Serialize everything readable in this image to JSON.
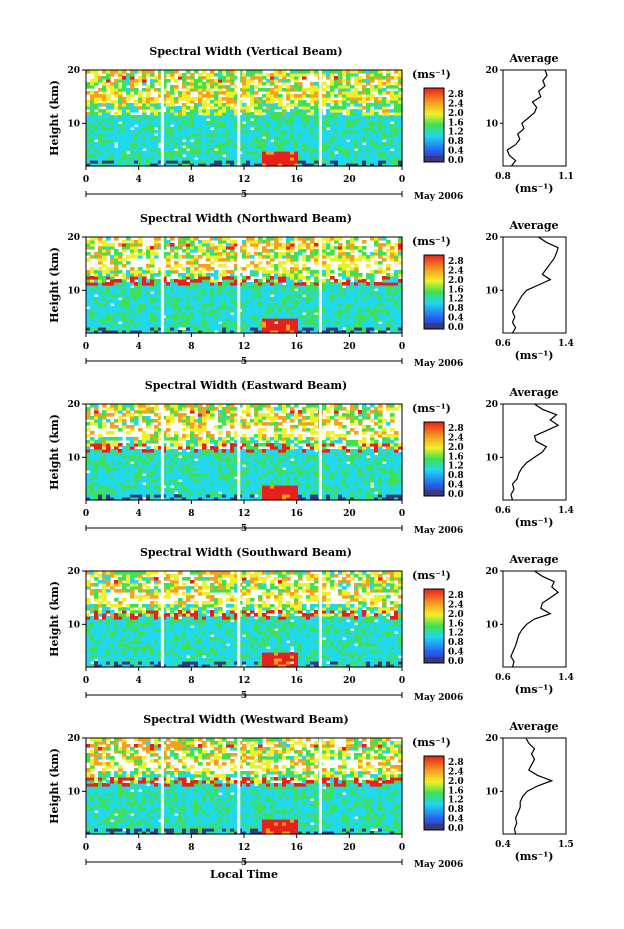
{
  "figure": {
    "xlabel": "Local Time",
    "ylabel": "Height (km)",
    "date_label": "May 2006",
    "day_label": "5",
    "unit_label": "(ms⁻¹)",
    "average_title": "Average",
    "colorbar_ticks": [
      "2.8",
      "2.4",
      "2.0",
      "1.6",
      "1.2",
      "0.8",
      "0.4",
      "0.0"
    ],
    "colors": {
      "red": "#e8201c",
      "orange": "#f4a020",
      "yellow": "#f0f028",
      "green": "#40e050",
      "cyan": "#20d8f0",
      "blue": "#2860f0",
      "navy": "#383a7c"
    }
  },
  "chart_data": [
    {
      "type": "heatmap",
      "title": "Spectral Width (Vertical Beam)",
      "xlim": [
        0,
        24
      ],
      "ylim": [
        2,
        20
      ],
      "xticks": [
        "0",
        "4",
        "8",
        "12",
        "16",
        "20",
        "0"
      ],
      "yticks": [
        "20",
        "10"
      ],
      "clim": [
        0.0,
        3.0
      ],
      "gaps_hours": [
        5.8,
        11.6,
        17.8
      ],
      "average": {
        "type": "line",
        "title": "Average",
        "xlim": [
          0.8,
          1.1
        ],
        "xticks": [
          "0.8",
          "1.1"
        ],
        "yticks": [
          "20",
          "10"
        ],
        "profile": [
          [
            2,
            0.84
          ],
          [
            3,
            0.86
          ],
          [
            4,
            0.83
          ],
          [
            5,
            0.82
          ],
          [
            6,
            0.86
          ],
          [
            7,
            0.88
          ],
          [
            8,
            0.87
          ],
          [
            9,
            0.9
          ],
          [
            10,
            0.89
          ],
          [
            11,
            0.92
          ],
          [
            12,
            0.95
          ],
          [
            13,
            0.96
          ],
          [
            14,
            0.94
          ],
          [
            15,
            0.98
          ],
          [
            16,
            0.97
          ],
          [
            17,
            1.0
          ],
          [
            18,
            0.99
          ],
          [
            19,
            1.01
          ],
          [
            20,
            1.0
          ]
        ]
      }
    },
    {
      "type": "heatmap",
      "title": "Spectral Width (Northward Beam)",
      "xlim": [
        0,
        24
      ],
      "ylim": [
        2,
        20
      ],
      "xticks": [
        "0",
        "4",
        "8",
        "12",
        "16",
        "20",
        "0"
      ],
      "yticks": [
        "20",
        "10"
      ],
      "clim": [
        0.0,
        3.0
      ],
      "gaps_hours": [
        5.8,
        11.6,
        17.8
      ],
      "average": {
        "type": "line",
        "title": "Average",
        "xlim": [
          0.6,
          1.4
        ],
        "xticks": [
          "0.6",
          "1.4"
        ],
        "yticks": [
          "20",
          "10"
        ],
        "profile": [
          [
            2,
            0.72
          ],
          [
            3,
            0.76
          ],
          [
            4,
            0.72
          ],
          [
            5,
            0.75
          ],
          [
            6,
            0.72
          ],
          [
            7,
            0.76
          ],
          [
            8,
            0.8
          ],
          [
            9,
            0.84
          ],
          [
            10,
            0.9
          ],
          [
            11,
            1.05
          ],
          [
            12,
            1.2
          ],
          [
            13,
            1.1
          ],
          [
            14,
            1.15
          ],
          [
            15,
            1.2
          ],
          [
            16,
            1.25
          ],
          [
            17,
            1.28
          ],
          [
            18,
            1.3
          ],
          [
            19,
            1.15
          ],
          [
            20,
            1.05
          ]
        ]
      }
    },
    {
      "type": "heatmap",
      "title": "Spectral Width (Eastward Beam)",
      "xlim": [
        0,
        24
      ],
      "ylim": [
        2,
        20
      ],
      "xticks": [
        "0",
        "4",
        "8",
        "12",
        "16",
        "20",
        "0"
      ],
      "yticks": [
        "20",
        "10"
      ],
      "clim": [
        0.0,
        3.0
      ],
      "gaps_hours": [
        5.8,
        11.6,
        17.8
      ],
      "average": {
        "type": "line",
        "title": "Average",
        "xlim": [
          0.6,
          1.4
        ],
        "xticks": [
          "0.6",
          "1.4"
        ],
        "yticks": [
          "20",
          "10"
        ],
        "profile": [
          [
            2,
            0.72
          ],
          [
            3,
            0.7
          ],
          [
            4,
            0.74
          ],
          [
            5,
            0.72
          ],
          [
            6,
            0.78
          ],
          [
            7,
            0.8
          ],
          [
            8,
            0.84
          ],
          [
            9,
            0.9
          ],
          [
            10,
            1.0
          ],
          [
            11,
            1.1
          ],
          [
            12,
            1.15
          ],
          [
            13,
            1.02
          ],
          [
            14,
            1.0
          ],
          [
            15,
            1.15
          ],
          [
            16,
            1.3
          ],
          [
            17,
            1.2
          ],
          [
            18,
            1.28
          ],
          [
            19,
            1.1
          ],
          [
            20,
            1.0
          ]
        ]
      }
    },
    {
      "type": "heatmap",
      "title": "Spectral Width (Southward Beam)",
      "xlim": [
        0,
        24
      ],
      "ylim": [
        2,
        20
      ],
      "xticks": [
        "0",
        "4",
        "8",
        "12",
        "16",
        "20",
        "0"
      ],
      "yticks": [
        "20",
        "10"
      ],
      "clim": [
        0.0,
        3.0
      ],
      "gaps_hours": [
        5.8,
        11.6,
        17.8
      ],
      "average": {
        "type": "line",
        "title": "Average",
        "xlim": [
          0.6,
          1.4
        ],
        "xticks": [
          "0.6",
          "1.4"
        ],
        "yticks": [
          "20",
          "10"
        ],
        "profile": [
          [
            2,
            0.72
          ],
          [
            3,
            0.74
          ],
          [
            4,
            0.7
          ],
          [
            5,
            0.73
          ],
          [
            6,
            0.76
          ],
          [
            7,
            0.78
          ],
          [
            8,
            0.8
          ],
          [
            9,
            0.84
          ],
          [
            10,
            0.9
          ],
          [
            11,
            1.0
          ],
          [
            12,
            1.2
          ],
          [
            13,
            1.08
          ],
          [
            14,
            1.1
          ],
          [
            15,
            1.2
          ],
          [
            16,
            1.3
          ],
          [
            17,
            1.22
          ],
          [
            18,
            1.25
          ],
          [
            19,
            1.1
          ],
          [
            20,
            1.0
          ]
        ]
      }
    },
    {
      "type": "heatmap",
      "title": "Spectral Width (Westward Beam)",
      "xlim": [
        0,
        24
      ],
      "ylim": [
        2,
        20
      ],
      "xticks": [
        "0",
        "4",
        "8",
        "12",
        "16",
        "20",
        "0"
      ],
      "yticks": [
        "20",
        "10"
      ],
      "clim": [
        0.0,
        3.0
      ],
      "gaps_hours": [
        5.8,
        11.6,
        17.8
      ],
      "average": {
        "type": "line",
        "title": "Average",
        "xlim": [
          0.4,
          1.5
        ],
        "xticks": [
          "0.4",
          "1.5"
        ],
        "yticks": [
          "20",
          "10"
        ],
        "profile": [
          [
            2,
            0.62
          ],
          [
            3,
            0.6
          ],
          [
            4,
            0.64
          ],
          [
            5,
            0.62
          ],
          [
            6,
            0.66
          ],
          [
            7,
            0.7
          ],
          [
            8,
            0.7
          ],
          [
            9,
            0.74
          ],
          [
            10,
            0.82
          ],
          [
            11,
            1.0
          ],
          [
            12,
            1.25
          ],
          [
            13,
            1.0
          ],
          [
            14,
            0.85
          ],
          [
            15,
            0.9
          ],
          [
            16,
            0.95
          ],
          [
            17,
            0.9
          ],
          [
            18,
            0.95
          ],
          [
            19,
            0.85
          ],
          [
            20,
            0.8
          ]
        ]
      }
    }
  ]
}
